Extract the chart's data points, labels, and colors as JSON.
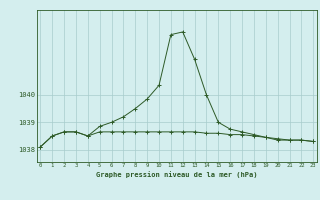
{
  "xlabel": "Graphe pression niveau de la mer (hPa)",
  "hours": [
    0,
    1,
    2,
    3,
    4,
    5,
    6,
    7,
    8,
    9,
    10,
    11,
    12,
    13,
    14,
    15,
    16,
    17,
    18,
    19,
    20,
    21,
    22,
    23
  ],
  "pressure1": [
    1038.1,
    1038.5,
    1038.65,
    1038.65,
    1038.5,
    1038.65,
    1038.65,
    1038.65,
    1038.65,
    1038.65,
    1038.65,
    1038.65,
    1038.65,
    1038.65,
    1038.6,
    1038.6,
    1038.55,
    1038.55,
    1038.5,
    1038.45,
    1038.35,
    1038.35,
    1038.35,
    1038.3
  ],
  "pressure2": [
    1038.1,
    1038.5,
    1038.65,
    1038.65,
    1038.5,
    1038.85,
    1039.0,
    1039.2,
    1039.5,
    1039.85,
    1040.35,
    1042.2,
    1042.3,
    1041.3,
    1040.0,
    1039.0,
    1038.75,
    1038.65,
    1038.55,
    1038.45,
    1038.4,
    1038.35,
    1038.35,
    1038.3
  ],
  "bg_color": "#d4eeee",
  "line_color": "#2d5a27",
  "grid_color": "#a8cccc",
  "text_color": "#2d5a27",
  "ylim_min": 1037.55,
  "ylim_max": 1043.1,
  "yticks": [
    1038,
    1039,
    1040
  ],
  "xlim_min": -0.3,
  "xlim_max": 23.3,
  "figwidth": 3.2,
  "figheight": 2.0,
  "dpi": 100
}
